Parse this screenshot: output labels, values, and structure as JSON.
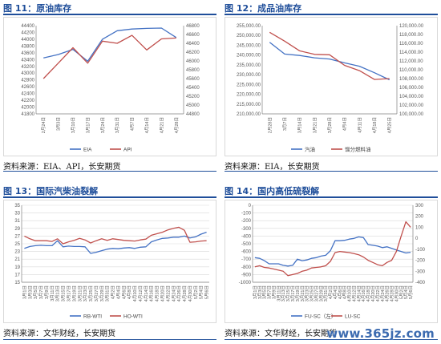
{
  "panels": [
    {
      "title": "图 11：原油库存",
      "source": "资料来源：EIA、API，长安期货",
      "chart": {
        "type": "line",
        "categories": [
          "2月24日",
          "3月3日",
          "3月10日",
          "3月17日",
          "3月24日",
          "3月31日",
          "4月7日",
          "4月14日",
          "4月21日",
          "4月28日"
        ],
        "y_ticks_left": [
          "41800",
          "42000",
          "42200",
          "42400",
          "42600",
          "42800",
          "43000",
          "43200",
          "43400",
          "43600",
          "43800",
          "44000",
          "44200",
          "44400"
        ],
        "y_ticks_right": [
          "44800",
          "45000",
          "45200",
          "45400",
          "45600",
          "45800",
          "46000",
          "46200",
          "46400",
          "46600",
          "46800"
        ],
        "legend": [
          "EIA",
          "API"
        ]
      }
    },
    {
      "title": "图 12：成品油库存",
      "source": "资料来源：EIA，长安期货",
      "chart": {
        "type": "line",
        "categories": [
          "2月28日",
          "3月7日",
          "3月14日",
          "3月21日",
          "3月28日",
          "4月4日",
          "4月11日",
          "4月18日",
          "4月25日"
        ],
        "y_ticks_left": [
          "210,000.00",
          "215,000.00",
          "220,000.00",
          "225,000.00",
          "230,000.00",
          "235,000.00",
          "240,000.00",
          "245,000.00",
          "250,000.00",
          "255,000.00"
        ],
        "y_ticks_right": [
          "100,000.00",
          "102,000.00",
          "104,000.00",
          "106,000.00",
          "108,000.00",
          "110,000.00",
          "112,000.00",
          "114,000.00",
          "116,000.00",
          "118,000.00",
          "120,000.00"
        ],
        "legend": [
          "汽油",
          "馏分燃料油"
        ]
      }
    },
    {
      "title": "图 13：国际汽柴油裂解",
      "source": "资料来源：文华财经，长安期货",
      "chart": {
        "type": "line",
        "categories": [
          "3月1日",
          "3月3日",
          "3月5日",
          "3月7日",
          "3月9日",
          "3月11日",
          "3月13日",
          "3月15日",
          "3月17日",
          "3月19日",
          "3月21日",
          "3月23日",
          "3月25日",
          "3月27日",
          "3月29日",
          "3月31日",
          "4月2日",
          "4月4日",
          "4月6日",
          "4月8日",
          "4月10日",
          "4月12日",
          "4月14日",
          "4月16日",
          "4月18日",
          "4月20日",
          "4月22日",
          "4月24日",
          "4月26日",
          "4月28日",
          "4月30日",
          "5月2日",
          "5月4日",
          "5月6日"
        ],
        "y_ticks_left": [
          "15",
          "17",
          "19",
          "21",
          "23",
          "25",
          "27",
          "29",
          "31",
          "33",
          "35"
        ],
        "legend": [
          "RB-WTI",
          "HO-WTI"
        ]
      }
    },
    {
      "title": "图 14：国内高低硫裂解",
      "source": "资料来源：文华财经，长安期货",
      "chart": {
        "type": "line",
        "categories": [
          "3月1日",
          "3月3日",
          "3月5日",
          "3月7日",
          "3月9日",
          "3月11日",
          "3月13日",
          "3月15日",
          "3月17日",
          "3月19日",
          "3月21日",
          "3月23日",
          "3月25日",
          "3月27日",
          "3月29日",
          "3月31日",
          "4月2日",
          "4月4日",
          "4月6日",
          "4月8日",
          "4月10日",
          "4月12日",
          "4月14日",
          "4月16日",
          "4月18日",
          "4月20日",
          "4月22日",
          "4月24日",
          "4月26日",
          "4月28日",
          "4月30日",
          "5月2日",
          "5月4日",
          "5月6日"
        ],
        "y_ticks_left": [
          "0",
          "-100",
          "-200",
          "-300",
          "-400",
          "-500",
          "-600",
          "-700",
          "-800",
          "-900",
          "-1000"
        ],
        "y_ticks_right": [
          "300",
          "200",
          "100",
          "0",
          "-100",
          "-200",
          "-300",
          "-400"
        ],
        "legend": [
          "FU-SC（左）",
          "LU-SC"
        ]
      }
    }
  ],
  "chart_data": [
    {
      "type": "line",
      "title": "图 11：原油库存",
      "categories": [
        "2月24日",
        "3月3日",
        "3月10日",
        "3月17日",
        "3月24日",
        "3月31日",
        "4月7日",
        "4月14日",
        "4月21日",
        "4月28日"
      ],
      "ylim_left": [
        41800,
        44400
      ],
      "ylim_right": [
        44800,
        46800
      ],
      "series": [
        {
          "name": "EIA",
          "axis": "left",
          "values": [
            43450,
            43550,
            43700,
            43350,
            44000,
            44250,
            44300,
            44320,
            44330,
            44050
          ]
        },
        {
          "name": "API",
          "axis": "right",
          "values": [
            45600,
            45950,
            46300,
            45950,
            46450,
            46400,
            46580,
            46250,
            46500,
            46520
          ]
        }
      ],
      "legend_position": "bottom",
      "grid": false
    },
    {
      "type": "line",
      "title": "图 12：成品油库存",
      "categories": [
        "2月28日",
        "3月7日",
        "3月14日",
        "3月21日",
        "3月28日",
        "4月4日",
        "4月11日",
        "4月18日",
        "4月25日"
      ],
      "ylim_left": [
        210000,
        255000
      ],
      "ylim_right": [
        100000,
        120000
      ],
      "series": [
        {
          "name": "汽油",
          "axis": "left",
          "values": [
            246500,
            240500,
            239800,
            238600,
            238000,
            236000,
            234300,
            231000,
            227400
          ]
        },
        {
          "name": "馏分燃料油",
          "axis": "right",
          "values": [
            118500,
            116500,
            114300,
            113500,
            113400,
            111000,
            109800,
            107800,
            108000
          ]
        }
      ],
      "legend_position": "bottom",
      "grid": false
    },
    {
      "type": "line",
      "title": "图 13：国际汽柴油裂解",
      "categories": [
        "3月1日",
        "3月3日",
        "3月5日",
        "3月7日",
        "3月9日",
        "3月11日",
        "3月13日",
        "3月15日",
        "3月17日",
        "3月19日",
        "3月21日",
        "3月23日",
        "3月25日",
        "3月27日",
        "3月29日",
        "3月31日",
        "4月2日",
        "4月4日",
        "4月6日",
        "4月8日",
        "4月10日",
        "4月12日",
        "4月14日",
        "4月16日",
        "4月18日",
        "4月20日",
        "4月22日",
        "4月24日",
        "4月26日",
        "4月28日",
        "4月30日",
        "5月2日",
        "5月4日",
        "5月6日"
      ],
      "ylim": [
        15,
        35
      ],
      "series": [
        {
          "name": "RB-WTI",
          "values": [
            23.8,
            24.3,
            24.5,
            24.6,
            24.5,
            24.5,
            25.8,
            24.2,
            24.4,
            24.3,
            24.3,
            24.2,
            22.5,
            22.8,
            23.2,
            23.6,
            23.8,
            23.7,
            23.9,
            24.0,
            23.8,
            24.1,
            24.2,
            25.5,
            26.0,
            26.4,
            26.5,
            26.7,
            26.7,
            27.0,
            26.5,
            26.8,
            27.5,
            28.0
          ]
        },
        {
          "name": "HO-WTI",
          "values": [
            27.0,
            26.3,
            25.8,
            25.8,
            25.8,
            25.6,
            26.3,
            25.0,
            25.5,
            25.9,
            26.4,
            26.0,
            25.2,
            25.8,
            26.3,
            25.9,
            26.3,
            26.1,
            25.9,
            25.8,
            25.7,
            26.0,
            26.2,
            27.2,
            27.6,
            28.0,
            28.6,
            29.0,
            29.3,
            28.5,
            25.4,
            25.5,
            25.7,
            25.8
          ]
        }
      ],
      "legend_position": "bottom",
      "grid": true
    },
    {
      "type": "line",
      "title": "图 14：国内高低硫裂解",
      "categories": [
        "3月1日",
        "3月3日",
        "3月5日",
        "3月7日",
        "3月9日",
        "3月11日",
        "3月13日",
        "3月15日",
        "3月17日",
        "3月19日",
        "3月21日",
        "3月23日",
        "3月25日",
        "3月27日",
        "3月29日",
        "3月31日",
        "4月2日",
        "4月4日",
        "4月6日",
        "4月8日",
        "4月10日",
        "4月12日",
        "4月14日",
        "4月16日",
        "4月18日",
        "4月20日",
        "4月22日",
        "4月24日",
        "4月26日",
        "4月28日",
        "4月30日",
        "5月2日",
        "5月4日",
        "5月6日"
      ],
      "ylim_left": [
        -1000,
        0
      ],
      "ylim_right": [
        -400,
        300
      ],
      "series": [
        {
          "name": "FU-SC（左）",
          "axis": "left",
          "values": [
            -680,
            -690,
            -720,
            -760,
            -760,
            -760,
            -780,
            -790,
            -780,
            -700,
            -720,
            -710,
            -690,
            -680,
            -660,
            -650,
            -590,
            -460,
            -460,
            -455,
            -440,
            -430,
            -410,
            -420,
            -510,
            -520,
            -530,
            -550,
            -540,
            -560,
            -580,
            -600,
            -620,
            -610
          ]
        },
        {
          "name": "LU-SC",
          "axis": "right",
          "values": [
            -260,
            -250,
            -265,
            -270,
            -280,
            -290,
            -300,
            -340,
            -330,
            -320,
            -300,
            -290,
            -270,
            -265,
            -260,
            -250,
            -210,
            -130,
            -120,
            -125,
            -130,
            -140,
            -150,
            -170,
            -200,
            -220,
            -240,
            -250,
            -220,
            -200,
            -120,
            20,
            150,
            100
          ]
        }
      ],
      "legend_position": "bottom",
      "grid": true
    }
  ],
  "watermark": "www.365jz.com",
  "colors": {
    "blue": "#4472c4",
    "red": "#c0504d",
    "title": "#1f4e9a",
    "grid": "#d9d9d9",
    "axis": "#7f7f7f"
  }
}
